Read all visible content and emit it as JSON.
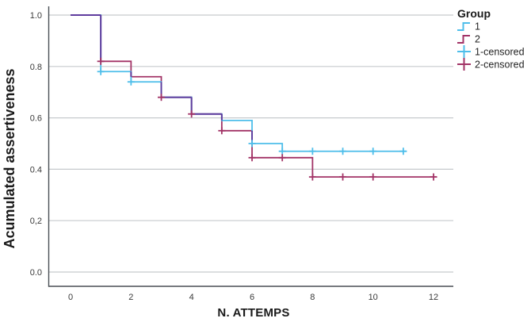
{
  "figure": {
    "background": "#ffffff"
  },
  "chart_data": {
    "type": "line",
    "subtype": "kaplan-meier-step-survival",
    "title": "",
    "xlabel": "N. ATTEMPS",
    "ylabel": "Acumulated assertiveness",
    "xticks": {
      "values": [
        0,
        2,
        4,
        6,
        8,
        10,
        12
      ],
      "labels": [
        "0",
        "2",
        "4",
        "6",
        "8",
        "10",
        "12"
      ]
    },
    "yticks": {
      "values": [
        1.0,
        0.8,
        0.6,
        0.4,
        0.2,
        0.0
      ],
      "labels": [
        "1.0",
        "0.8",
        "0.6",
        "0.4",
        "0,2",
        "0.0"
      ]
    },
    "xlim": [
      -0.71,
      12.65
    ],
    "ylim": [
      -0.056,
      1.034
    ],
    "grid": "horizontal",
    "colors": {
      "grid": "#c6cacd",
      "axis": "#4a4f55",
      "overlap": "#5f3c9e"
    },
    "legend": {
      "title": "Group",
      "position": "top-right",
      "items": [
        {
          "label": "1",
          "type": "step",
          "color": "#4ebeea"
        },
        {
          "label": "2",
          "type": "step",
          "color": "#a23366"
        },
        {
          "label": "1-censored",
          "type": "plus",
          "color": "#4ebeea"
        },
        {
          "label": "2-censored",
          "type": "plus",
          "color": "#a23366"
        }
      ]
    },
    "series": [
      {
        "name": "1",
        "color": "#4ebeea",
        "steps": [
          [
            0,
            1.0
          ],
          [
            1,
            0.78
          ],
          [
            2,
            0.74
          ],
          [
            3,
            0.68
          ],
          [
            4,
            0.615
          ],
          [
            5,
            0.59
          ],
          [
            6,
            0.5
          ],
          [
            7,
            0.47
          ]
        ],
        "end_t": 11.1,
        "censored": [
          [
            1,
            0.78
          ],
          [
            2,
            0.74
          ],
          [
            6,
            0.5
          ],
          [
            7,
            0.47
          ],
          [
            8,
            0.47
          ],
          [
            9,
            0.47
          ],
          [
            10,
            0.47
          ],
          [
            11,
            0.47
          ]
        ]
      },
      {
        "name": "2",
        "color": "#a23366",
        "steps": [
          [
            0,
            1.0
          ],
          [
            1,
            0.82
          ],
          [
            2,
            0.76
          ],
          [
            3,
            0.68
          ],
          [
            4,
            0.615
          ],
          [
            5,
            0.55
          ],
          [
            6,
            0.445
          ],
          [
            8,
            0.37
          ]
        ],
        "end_t": 12.1,
        "censored": [
          [
            1,
            0.82
          ],
          [
            3,
            0.68
          ],
          [
            4,
            0.615
          ],
          [
            5,
            0.55
          ],
          [
            6,
            0.445
          ],
          [
            7,
            0.445
          ],
          [
            8,
            0.37
          ],
          [
            9,
            0.37
          ],
          [
            10,
            0.37
          ],
          [
            12,
            0.37
          ]
        ]
      }
    ]
  }
}
